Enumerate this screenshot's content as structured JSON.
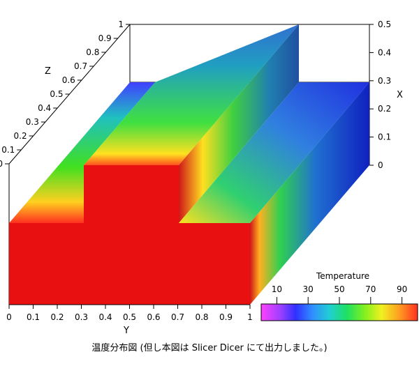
{
  "caption": "温度分布図 (但し本図は Slicer Dicer にて出力しました。)",
  "axes": {
    "y": {
      "label": "Y",
      "ticks": [
        "0",
        "0.1",
        "0.2",
        "0.3",
        "0.4",
        "0.5",
        "0.6",
        "0.7",
        "0.8",
        "0.9",
        "1"
      ]
    },
    "z": {
      "label": "Z",
      "ticks": [
        "0",
        "0.1",
        "0.2",
        "0.3",
        "0.4",
        "0.5",
        "0.6",
        "0.7",
        "0.8",
        "0.9",
        "1"
      ]
    },
    "x": {
      "label": "X",
      "ticks": [
        "0",
        "0.1",
        "0.2",
        "0.3",
        "0.4",
        "0.5"
      ]
    }
  },
  "legend": {
    "title": "Temperature",
    "ticks": [
      "10",
      "30",
      "50",
      "70",
      "90"
    ],
    "colormap": [
      "#ff40ff",
      "#a040ff",
      "#3030ff",
      "#3090ff",
      "#20d0d0",
      "#20e060",
      "#80f020",
      "#f0f020",
      "#ffa020",
      "#ff3020"
    ]
  }
}
